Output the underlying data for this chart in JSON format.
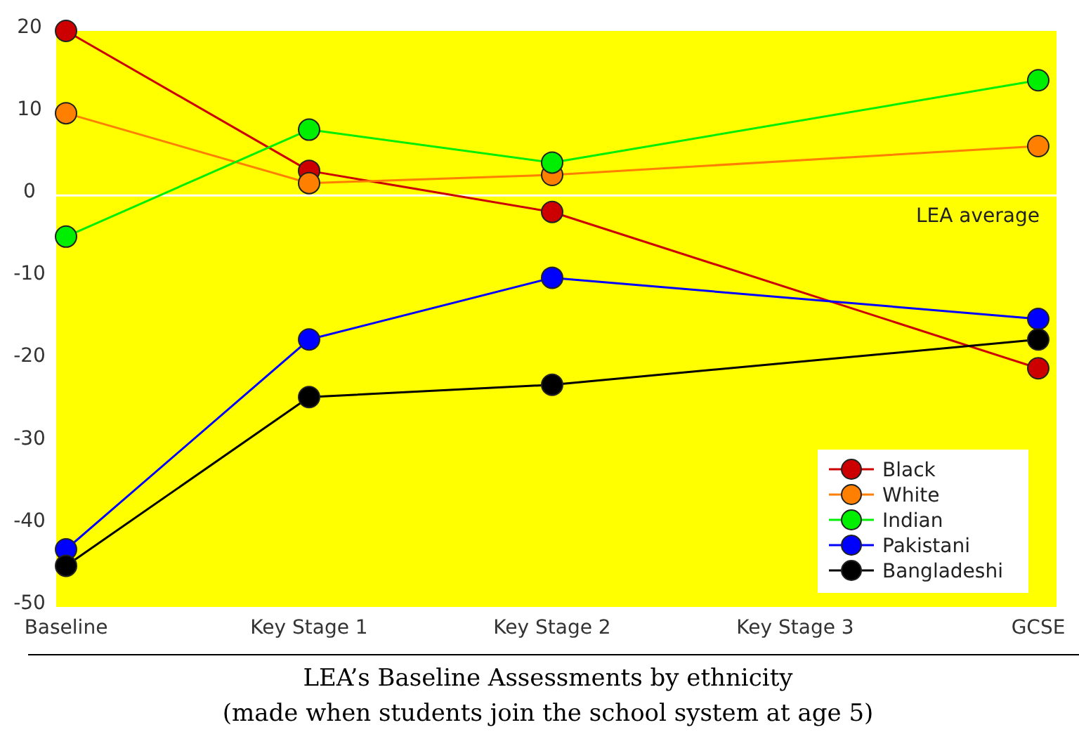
{
  "chart_data": {
    "type": "line",
    "title": "LEA’s Baseline Assessments by ethnicity",
    "subtitle": "(made when students join the school system at age 5)",
    "categories": [
      "Baseline",
      "Key Stage 1",
      "Key Stage 2",
      "Key Stage 3",
      "GCSE"
    ],
    "series": [
      {
        "name": "Black",
        "color": "#cc0000",
        "values": [
          20,
          3,
          -2,
          null,
          -21
        ]
      },
      {
        "name": "White",
        "color": "#ff7f00",
        "values": [
          10,
          1.5,
          2.5,
          null,
          6
        ]
      },
      {
        "name": "Indian",
        "color": "#00ee00",
        "values": [
          -5,
          8,
          4,
          null,
          14
        ]
      },
      {
        "name": "Pakistani",
        "color": "#0000ff",
        "values": [
          -43,
          -17.5,
          -10,
          null,
          -15
        ]
      },
      {
        "name": "Bangladeshi",
        "color": "#000000",
        "values": [
          -45,
          -24.5,
          -23,
          null,
          -17.5
        ]
      }
    ],
    "ylim": [
      -50,
      20
    ],
    "yticks": [
      -50,
      -40,
      -30,
      -20,
      -10,
      0,
      10,
      20
    ],
    "ref_lines": [
      {
        "axis": "y",
        "value": 0,
        "label": "LEA average",
        "color": "#ffffff"
      }
    ],
    "grid": false,
    "legend": "bottom right",
    "marker": "circle",
    "line_style": "solid"
  }
}
